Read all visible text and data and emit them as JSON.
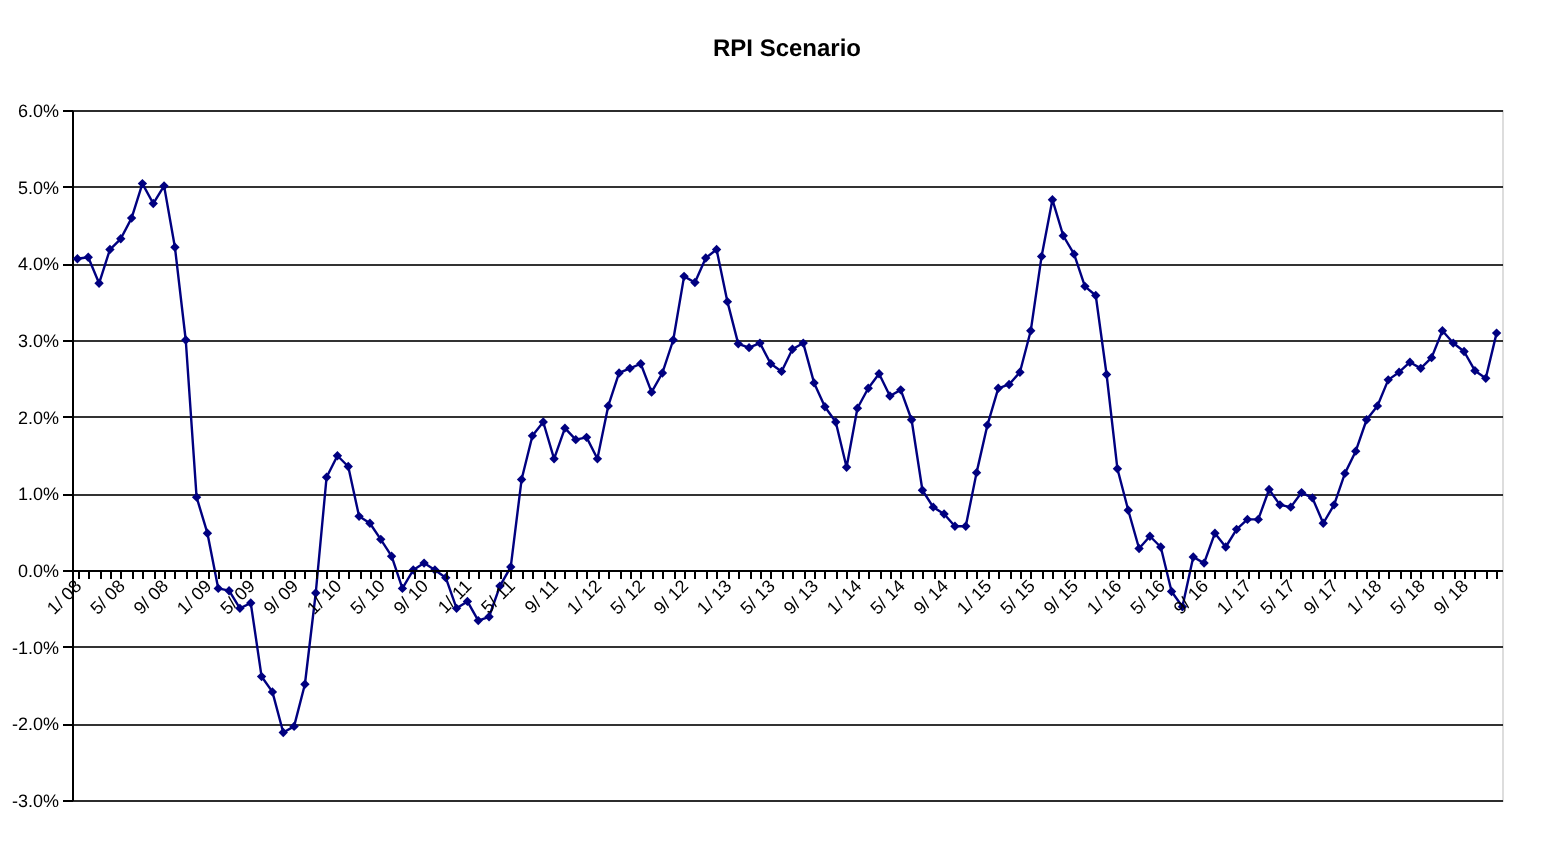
{
  "chart_data": {
    "type": "line",
    "title": "RPI Scenario",
    "categories": [
      "1/ 08",
      null,
      null,
      null,
      "5/ 08",
      null,
      null,
      null,
      "9/ 08",
      null,
      null,
      null,
      "1/ 09",
      null,
      null,
      null,
      "5/ 09",
      null,
      null,
      null,
      "9/ 09",
      null,
      null,
      null,
      "1/ 10",
      null,
      null,
      null,
      "5/ 10",
      null,
      null,
      null,
      "9/ 10",
      null,
      null,
      null,
      "1/ 11",
      null,
      null,
      null,
      "5/ 11",
      null,
      null,
      null,
      "9/ 11",
      null,
      null,
      null,
      "1/ 12",
      null,
      null,
      null,
      "5/ 12",
      null,
      null,
      null,
      "9/ 12",
      null,
      null,
      null,
      "1/ 13",
      null,
      null,
      null,
      "5/ 13",
      null,
      null,
      null,
      "9/ 13",
      null,
      null,
      null,
      "1/ 14",
      null,
      null,
      null,
      "5/ 14",
      null,
      null,
      null,
      "9/ 14",
      null,
      null,
      null,
      "1/ 15",
      null,
      null,
      null,
      "5/ 15",
      null,
      null,
      null,
      "9/ 15",
      null,
      null,
      null,
      "1/ 16",
      null,
      null,
      null,
      "5/ 16",
      null,
      null,
      null,
      "9/ 16",
      null,
      null,
      null,
      "1/ 17",
      null,
      null,
      null,
      "5/ 17",
      null,
      null,
      null,
      "9/ 17",
      null,
      null,
      null,
      "1/ 18",
      null,
      null,
      null,
      "5/ 18",
      null,
      null,
      null,
      "9/ 18",
      null,
      null,
      null
    ],
    "series": [
      {
        "color": "#000080",
        "values": [
          4.06,
          4.08,
          3.74,
          4.18,
          4.32,
          4.59,
          5.04,
          4.78,
          5.01,
          4.21,
          3.0,
          0.95,
          0.48,
          -0.24,
          -0.27,
          -0.5,
          -0.43,
          -1.39,
          -1.59,
          -2.12,
          -2.04,
          -1.49,
          -0.3,
          1.21,
          1.49,
          1.35,
          0.7,
          0.61,
          0.4,
          0.18,
          -0.24,
          0.0,
          0.09,
          0.0,
          -0.1,
          -0.5,
          -0.41,
          -0.66,
          -0.61,
          -0.21,
          0.04,
          1.18,
          1.75,
          1.93,
          1.45,
          1.85,
          1.7,
          1.73,
          1.45,
          2.14,
          2.57,
          2.63,
          2.69,
          2.32,
          2.57,
          3.0,
          3.83,
          3.75,
          4.07,
          4.18,
          3.5,
          2.95,
          2.9,
          2.96,
          2.69,
          2.59,
          2.88,
          2.96,
          2.44,
          2.13,
          1.93,
          1.34,
          2.11,
          2.37,
          2.56,
          2.27,
          2.35,
          1.96,
          1.04,
          0.82,
          0.73,
          0.57,
          0.57,
          1.27,
          1.89,
          2.37,
          2.42,
          2.58,
          3.12,
          4.09,
          4.83,
          4.36,
          4.12,
          3.7,
          3.58,
          2.55,
          1.32,
          0.78,
          0.28,
          0.44,
          0.3,
          -0.28,
          -0.48,
          0.17,
          0.09,
          0.48,
          0.3,
          0.53,
          0.66,
          0.66,
          1.05,
          0.85,
          0.82,
          1.01,
          0.94,
          0.61,
          0.85,
          1.26,
          1.55,
          1.96,
          2.14,
          2.48,
          2.58,
          2.71,
          2.63,
          2.77,
          3.12,
          2.96,
          2.85,
          2.6,
          2.5,
          3.09
        ]
      }
    ],
    "ylim": [
      -3,
      6
    ],
    "yticks": [
      {
        "value": -3,
        "label": "-3.0%"
      },
      {
        "value": -2,
        "label": "-2.0%"
      },
      {
        "value": -1,
        "label": "-1.0%"
      },
      {
        "value": 0,
        "label": "0.0%"
      },
      {
        "value": 1,
        "label": "1.0%"
      },
      {
        "value": 2,
        "label": "2.0%"
      },
      {
        "value": 3,
        "label": "3.0%"
      },
      {
        "value": 4,
        "label": "4.0%"
      },
      {
        "value": 5,
        "label": "5.0%"
      },
      {
        "value": 6,
        "label": "6.0%"
      }
    ],
    "grid": "y",
    "marker": "diamond",
    "line_style": "solid"
  }
}
